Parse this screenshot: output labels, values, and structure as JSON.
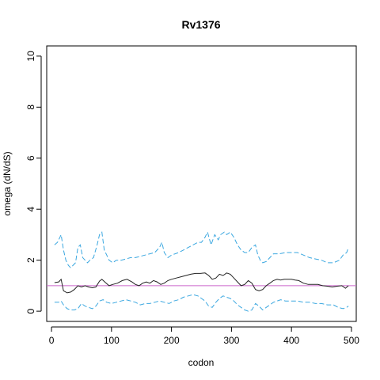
{
  "chart_data": {
    "type": "line",
    "title": "Rv1376",
    "xlabel": "codon",
    "ylabel": "omega (dN/dS)",
    "xlim": [
      -8,
      508
    ],
    "ylim": [
      -0.4,
      10.4
    ],
    "xticks": [
      0,
      100,
      200,
      300,
      400,
      500
    ],
    "yticks": [
      0,
      2,
      4,
      6,
      8,
      10
    ],
    "grid": false,
    "legend": "none",
    "reference_line": {
      "y": 1,
      "color": "#cc66cc"
    },
    "series": [
      {
        "style": "solid",
        "color": "#222222",
        "x": [
          5,
          12,
          16,
          20,
          26,
          32,
          38,
          44,
          50,
          56,
          62,
          68,
          74,
          80,
          84,
          90,
          96,
          102,
          110,
          118,
          126,
          134,
          140,
          146,
          152,
          158,
          164,
          170,
          176,
          182,
          188,
          194,
          200,
          208,
          216,
          224,
          232,
          240,
          248,
          256,
          262,
          268,
          274,
          280,
          286,
          292,
          298,
          304,
          310,
          316,
          322,
          328,
          334,
          340,
          346,
          352,
          358,
          364,
          370,
          376,
          382,
          388,
          394,
          400,
          406,
          412,
          420,
          428,
          436,
          444,
          452,
          460,
          468,
          476,
          484,
          490,
          495
        ],
        "values": [
          1.12,
          1.15,
          1.25,
          0.8,
          0.72,
          0.75,
          0.85,
          1.0,
          0.95,
          1.0,
          0.95,
          0.92,
          0.95,
          1.18,
          1.25,
          1.12,
          1.0,
          1.05,
          1.1,
          1.2,
          1.25,
          1.15,
          1.05,
          1.0,
          1.1,
          1.15,
          1.1,
          1.2,
          1.15,
          1.05,
          1.1,
          1.2,
          1.25,
          1.3,
          1.35,
          1.4,
          1.45,
          1.48,
          1.48,
          1.5,
          1.4,
          1.25,
          1.3,
          1.45,
          1.4,
          1.5,
          1.45,
          1.3,
          1.15,
          1.0,
          1.05,
          1.2,
          1.1,
          0.85,
          0.8,
          0.85,
          1.0,
          1.1,
          1.2,
          1.25,
          1.22,
          1.25,
          1.25,
          1.25,
          1.22,
          1.2,
          1.1,
          1.05,
          1.05,
          1.05,
          1.0,
          0.98,
          0.95,
          0.98,
          1.0,
          0.9,
          1.0
        ]
      },
      {
        "style": "dashed",
        "color": "#3aa7e0",
        "x": [
          5,
          10,
          14,
          16,
          20,
          24,
          28,
          32,
          36,
          40,
          44,
          48,
          52,
          56,
          60,
          64,
          70,
          76,
          80,
          84,
          88,
          92,
          96,
          102,
          108,
          116,
          124,
          132,
          140,
          148,
          156,
          164,
          172,
          180,
          184,
          188,
          194,
          200,
          206,
          212,
          220,
          228,
          236,
          244,
          250,
          256,
          260,
          266,
          272,
          278,
          282,
          288,
          292,
          298,
          304,
          310,
          316,
          322,
          328,
          334,
          340,
          344,
          348,
          352,
          358,
          364,
          370,
          380,
          390,
          400,
          410,
          420,
          430,
          440,
          450,
          460,
          470,
          480,
          486,
          492,
          495
        ],
        "values": [
          2.6,
          2.7,
          2.9,
          3.0,
          2.4,
          2.0,
          1.8,
          1.7,
          1.8,
          1.9,
          2.5,
          2.6,
          2.1,
          2.0,
          1.9,
          2.0,
          2.1,
          2.6,
          3.0,
          3.1,
          2.4,
          2.2,
          2.0,
          1.9,
          2.0,
          2.0,
          2.05,
          2.1,
          2.1,
          2.15,
          2.2,
          2.25,
          2.3,
          2.5,
          2.7,
          2.3,
          2.1,
          2.2,
          2.25,
          2.3,
          2.4,
          2.5,
          2.6,
          2.7,
          2.7,
          2.9,
          3.1,
          2.6,
          3.0,
          2.8,
          3.0,
          3.1,
          3.0,
          3.1,
          2.9,
          2.6,
          2.4,
          2.3,
          2.3,
          2.5,
          2.6,
          2.2,
          2.0,
          1.9,
          1.95,
          2.1,
          2.25,
          2.25,
          2.3,
          2.3,
          2.3,
          2.2,
          2.1,
          2.05,
          2.0,
          1.9,
          1.9,
          2.0,
          2.2,
          2.3,
          2.5
        ]
      },
      {
        "style": "dashed",
        "color": "#3aa7e0",
        "x": [
          5,
          12,
          16,
          20,
          26,
          32,
          38,
          44,
          50,
          56,
          62,
          68,
          74,
          80,
          86,
          92,
          100,
          108,
          116,
          124,
          132,
          140,
          148,
          156,
          164,
          172,
          180,
          188,
          196,
          204,
          212,
          220,
          228,
          236,
          244,
          250,
          256,
          262,
          268,
          274,
          280,
          286,
          292,
          298,
          304,
          310,
          316,
          322,
          328,
          334,
          340,
          346,
          352,
          358,
          364,
          370,
          376,
          382,
          390,
          400,
          410,
          420,
          430,
          440,
          450,
          460,
          470,
          478,
          486,
          492,
          495
        ],
        "values": [
          0.35,
          0.35,
          0.4,
          0.25,
          0.1,
          0.05,
          0.05,
          0.1,
          0.3,
          0.2,
          0.15,
          0.1,
          0.2,
          0.4,
          0.45,
          0.35,
          0.3,
          0.35,
          0.4,
          0.45,
          0.4,
          0.35,
          0.25,
          0.3,
          0.3,
          0.35,
          0.4,
          0.35,
          0.3,
          0.4,
          0.45,
          0.55,
          0.6,
          0.65,
          0.6,
          0.5,
          0.4,
          0.2,
          0.15,
          0.35,
          0.5,
          0.6,
          0.55,
          0.5,
          0.4,
          0.25,
          0.15,
          0.05,
          0.0,
          0.05,
          0.3,
          0.2,
          0.05,
          0.15,
          0.25,
          0.35,
          0.4,
          0.45,
          0.4,
          0.4,
          0.4,
          0.35,
          0.35,
          0.3,
          0.3,
          0.25,
          0.25,
          0.15,
          0.1,
          0.15,
          0.2
        ]
      }
    ]
  }
}
